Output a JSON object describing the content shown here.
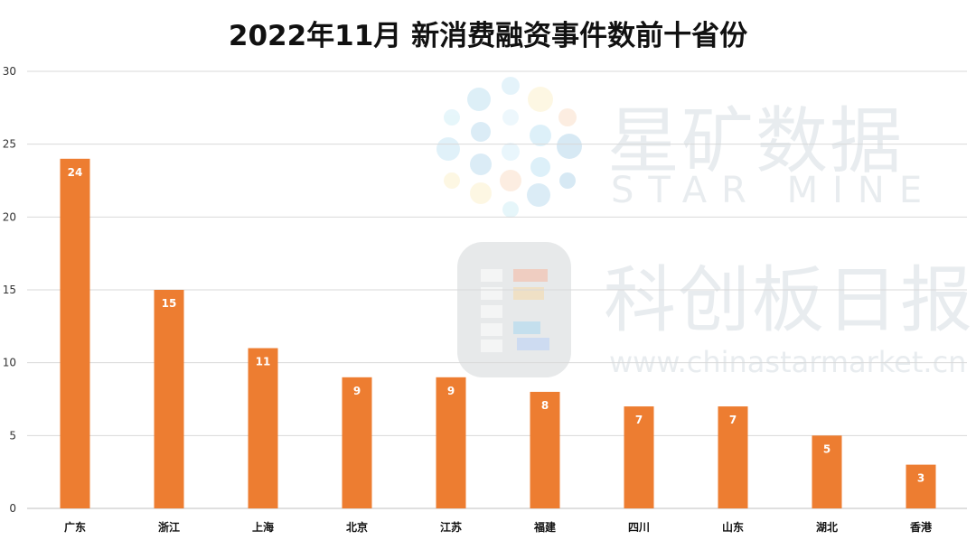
{
  "chart_data": {
    "type": "bar",
    "title": "2022年11月 新消费融资事件数前十省份",
    "categories": [
      "广东",
      "浙江",
      "上海",
      "北京",
      "江苏",
      "福建",
      "四川",
      "山东",
      "湖北",
      "香港"
    ],
    "values": [
      24,
      15,
      11,
      9,
      9,
      8,
      7,
      7,
      5,
      3
    ],
    "ylim": [
      0,
      30
    ],
    "yticks": [
      0,
      5,
      10,
      15,
      20,
      25,
      30
    ],
    "xlabel": "",
    "ylabel": "",
    "grid": true,
    "bar_color": "#ED7D31",
    "data_labels": "inside-top"
  },
  "watermark": {
    "brand_cn": "星矿数据",
    "brand_en": "STAR MINE",
    "brand2_cn": "科创板日报",
    "url": "www.chinastarmarket.cn"
  }
}
